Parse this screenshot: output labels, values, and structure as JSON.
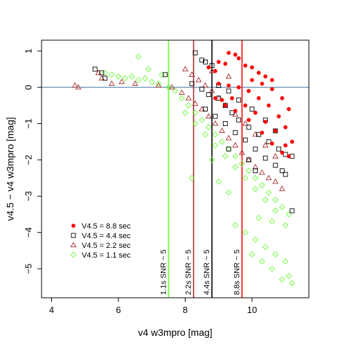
{
  "chart_data": {
    "type": "scatter",
    "title": "",
    "xlabel": "v4 w3mpro [mag]",
    "ylabel": "v4.5 − v4 w3mpro [mag]",
    "xlim": [
      3.7,
      11.7
    ],
    "ylim": [
      -5.8,
      1.3
    ],
    "x_ticks": [
      4,
      6,
      8,
      10
    ],
    "y_ticks": [
      1,
      0,
      -1,
      -2,
      -3,
      -4,
      -5
    ],
    "x_tick_labels": [
      "4",
      "6",
      "8",
      "10"
    ],
    "y_tick_labels": [
      "1",
      "0",
      "−1",
      "−2",
      "−3",
      "−4",
      "−5"
    ],
    "grid": false,
    "legend_position": "bottom-left",
    "reference_line": {
      "y": 0,
      "color": "#3a6e9e"
    },
    "series": [
      {
        "name": "V4.5 = 8.8 sec",
        "marker": "filled-circle",
        "color": "#ff0000",
        "points": [
          [
            8.7,
            0.55
          ],
          [
            8.9,
            0.45
          ],
          [
            9.0,
            0.7
          ],
          [
            9.2,
            0.65
          ],
          [
            9.3,
            0.95
          ],
          [
            9.5,
            0.9
          ],
          [
            9.6,
            0.8
          ],
          [
            9.8,
            0.6
          ],
          [
            10.0,
            0.55
          ],
          [
            10.2,
            0.4
          ],
          [
            10.4,
            0.3
          ],
          [
            10.6,
            0.2
          ],
          [
            9.0,
            0.1
          ],
          [
            9.3,
            0.05
          ],
          [
            9.6,
            0.0
          ],
          [
            9.9,
            -0.1
          ],
          [
            10.2,
            -0.3
          ],
          [
            10.5,
            -0.5
          ],
          [
            10.8,
            -0.8
          ],
          [
            11.0,
            -1.1
          ],
          [
            11.2,
            -1.5
          ],
          [
            9.4,
            -0.3
          ],
          [
            9.8,
            -0.5
          ],
          [
            10.1,
            -0.7
          ],
          [
            10.4,
            -0.95
          ],
          [
            10.7,
            -1.2
          ],
          [
            11.0,
            -1.6
          ],
          [
            11.1,
            -1.9
          ],
          [
            9.2,
            -0.5
          ],
          [
            9.5,
            -0.65
          ],
          [
            9.9,
            -0.9
          ],
          [
            10.3,
            -1.25
          ],
          [
            10.6,
            -1.55
          ],
          [
            10.9,
            -1.8
          ],
          [
            8.9,
            -0.3
          ],
          [
            9.1,
            -0.35
          ],
          [
            10.0,
            0.2
          ],
          [
            10.3,
            0.1
          ],
          [
            10.6,
            -0.05
          ],
          [
            10.9,
            -0.3
          ],
          [
            11.1,
            -0.6
          ]
        ]
      },
      {
        "name": "V4.5 = 4.4 sec",
        "marker": "open-square",
        "color": "#000000",
        "points": [
          [
            5.3,
            0.5
          ],
          [
            5.5,
            0.4
          ],
          [
            5.6,
            0.25
          ],
          [
            7.4,
            0.35
          ],
          [
            8.3,
            0.95
          ],
          [
            8.5,
            0.75
          ],
          [
            8.6,
            0.7
          ],
          [
            8.8,
            0.6
          ],
          [
            8.2,
            0.1
          ],
          [
            8.5,
            -0.05
          ],
          [
            8.7,
            -0.2
          ],
          [
            9.0,
            -0.3
          ],
          [
            9.2,
            -0.5
          ],
          [
            9.4,
            -0.7
          ],
          [
            9.6,
            -0.9
          ],
          [
            9.9,
            -1.1
          ],
          [
            10.2,
            -1.3
          ],
          [
            10.5,
            -1.5
          ],
          [
            10.8,
            -1.7
          ],
          [
            11.0,
            -1.85
          ],
          [
            11.2,
            -1.9
          ],
          [
            8.6,
            -0.6
          ],
          [
            8.9,
            -0.8
          ],
          [
            9.2,
            -1.0
          ],
          [
            9.5,
            -1.25
          ],
          [
            9.8,
            -1.45
          ],
          [
            10.1,
            -1.7
          ],
          [
            10.4,
            -1.95
          ],
          [
            10.7,
            -2.15
          ],
          [
            10.9,
            -2.3
          ],
          [
            9.0,
            0.05
          ],
          [
            9.3,
            -0.1
          ],
          [
            9.6,
            -0.35
          ],
          [
            10.0,
            -0.6
          ],
          [
            10.4,
            -0.9
          ],
          [
            10.7,
            -1.2
          ],
          [
            9.3,
            -1.7
          ],
          [
            9.9,
            -2.0
          ],
          [
            10.1,
            -2.3
          ],
          [
            11.2,
            -3.4
          ],
          [
            11.0,
            -2.4
          ]
        ]
      },
      {
        "name": "V4.5 = 2.2 sec",
        "marker": "open-triangle",
        "color": "#a52a2a",
        "points": [
          [
            4.7,
            0.05
          ],
          [
            4.8,
            0.0
          ],
          [
            5.4,
            0.4
          ],
          [
            5.5,
            0.25
          ],
          [
            5.8,
            0.1
          ],
          [
            6.1,
            0.15
          ],
          [
            6.5,
            0.1
          ],
          [
            7.2,
            0.05
          ],
          [
            7.6,
            0.0
          ],
          [
            7.9,
            -0.15
          ],
          [
            8.1,
            -0.3
          ],
          [
            8.3,
            -0.45
          ],
          [
            8.5,
            -0.6
          ],
          [
            8.7,
            -0.8
          ],
          [
            8.9,
            -1.0
          ],
          [
            9.1,
            -1.2
          ],
          [
            9.3,
            -1.4
          ],
          [
            9.5,
            -1.6
          ],
          [
            9.7,
            -1.8
          ],
          [
            9.9,
            -2.0
          ],
          [
            10.1,
            -2.2
          ],
          [
            10.3,
            -2.35
          ],
          [
            10.5,
            -2.5
          ],
          [
            10.7,
            -2.6
          ],
          [
            10.9,
            -2.8
          ],
          [
            8.0,
            0.5
          ],
          [
            8.2,
            0.35
          ],
          [
            8.4,
            0.2
          ],
          [
            8.6,
            0.05
          ],
          [
            8.8,
            -0.1
          ],
          [
            9.0,
            -0.3
          ],
          [
            9.2,
            -0.5
          ],
          [
            9.5,
            -0.75
          ],
          [
            9.8,
            -1.0
          ],
          [
            10.1,
            -1.3
          ],
          [
            10.4,
            -1.6
          ],
          [
            10.7,
            -1.9
          ],
          [
            8.8,
            0.45
          ],
          [
            9.3,
            0.3
          ]
        ]
      },
      {
        "name": "V4.5 = 1.1 sec",
        "marker": "open-diamond",
        "color": "#66ff33",
        "points": [
          [
            5.6,
            0.4
          ],
          [
            5.8,
            0.35
          ],
          [
            6.0,
            0.3
          ],
          [
            6.2,
            0.25
          ],
          [
            6.4,
            0.3
          ],
          [
            6.6,
            0.2
          ],
          [
            6.8,
            0.25
          ],
          [
            7.0,
            0.15
          ],
          [
            7.2,
            0.1
          ],
          [
            6.6,
            0.85
          ],
          [
            6.9,
            0.5
          ],
          [
            7.3,
            0.35
          ],
          [
            7.5,
            0.0
          ],
          [
            7.7,
            -0.1
          ],
          [
            7.9,
            -0.3
          ],
          [
            8.1,
            -0.5
          ],
          [
            8.3,
            -0.7
          ],
          [
            8.5,
            -0.9
          ],
          [
            8.7,
            -1.1
          ],
          [
            8.9,
            -1.3
          ],
          [
            9.1,
            -1.5
          ],
          [
            9.3,
            -1.7
          ],
          [
            9.5,
            -1.9
          ],
          [
            9.7,
            -2.1
          ],
          [
            9.9,
            -2.3
          ],
          [
            10.1,
            -2.5
          ],
          [
            10.3,
            -2.7
          ],
          [
            10.5,
            -2.9
          ],
          [
            10.7,
            -3.1
          ],
          [
            10.9,
            -3.3
          ],
          [
            11.1,
            -3.5
          ],
          [
            8.0,
            -0.7
          ],
          [
            8.3,
            -1.0
          ],
          [
            8.6,
            -1.3
          ],
          [
            8.9,
            -1.6
          ],
          [
            9.2,
            -1.9
          ],
          [
            9.5,
            -2.2
          ],
          [
            9.8,
            -2.5
          ],
          [
            10.1,
            -2.8
          ],
          [
            10.4,
            -3.1
          ],
          [
            10.7,
            -3.4
          ],
          [
            11.0,
            -3.8
          ],
          [
            9.5,
            -3.8
          ],
          [
            9.8,
            -4.0
          ],
          [
            10.1,
            -4.2
          ],
          [
            10.4,
            -4.4
          ],
          [
            10.7,
            -4.6
          ],
          [
            11.0,
            -4.8
          ],
          [
            11.1,
            -5.2
          ],
          [
            10.0,
            -4.6
          ],
          [
            10.3,
            -4.8
          ],
          [
            10.6,
            -5.0
          ],
          [
            10.9,
            -5.3
          ],
          [
            8.2,
            -2.5
          ],
          [
            8.8,
            -2.0
          ],
          [
            9.0,
            -2.6
          ],
          [
            9.3,
            -2.9
          ],
          [
            10.2,
            -3.6
          ],
          [
            10.6,
            -3.7
          ],
          [
            11.2,
            -5.4
          ]
        ]
      }
    ],
    "vertical_lines": [
      {
        "x": 7.5,
        "label": "1.1s SNR ~ 5",
        "color": "#66ff33"
      },
      {
        "x": 8.25,
        "label": "2.2s SNR ~ 5",
        "color": "#a52a2a"
      },
      {
        "x": 8.8,
        "label": "4.4s SNR ~ 5",
        "color": "#000000"
      },
      {
        "x": 9.7,
        "label": "8.8s SNR ~ 5",
        "color": "#ff0000"
      }
    ]
  }
}
